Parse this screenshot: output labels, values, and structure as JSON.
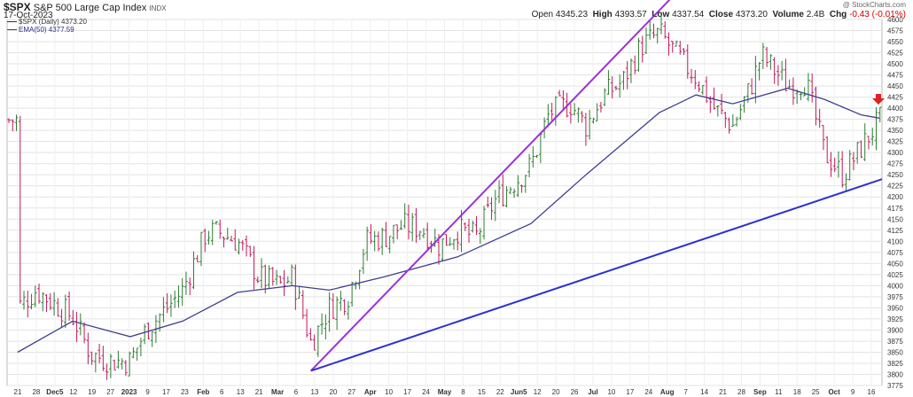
{
  "header": {
    "symbol": "$SPX",
    "name": "S&P 500 Large Cap Index",
    "exchange": "INDX",
    "date": "17-Oct-2023",
    "copyright": "@ StockCharts.com",
    "open_label": "Open",
    "open": "4345.23",
    "high_label": "High",
    "high": "4393.57",
    "low_label": "Low",
    "low": "4337.54",
    "close_label": "Close",
    "close": "4373.20",
    "volume_label": "Volume",
    "volume": "2.4B",
    "chg_label": "Chg",
    "chg": "-0.43 (-0.01%)"
  },
  "legend": {
    "price_series": "$SPX (Daily) 4373.20",
    "ema_series": "EMA(50) 4377.59"
  },
  "colors": {
    "up_bar": "#2e7d32",
    "down_bar": "#c2185b",
    "ema": "#3f3f8f",
    "trend_upper": "#9b30d9",
    "trend_lower": "#2f2fd1",
    "grid": "#e3e3e3",
    "arrow": "#dd2222"
  },
  "chart_data": {
    "type": "ohlc",
    "ylim": [
      3775,
      4600
    ],
    "y_ticks": [
      3775,
      3800,
      3825,
      3850,
      3875,
      3900,
      3925,
      3950,
      3975,
      4000,
      4025,
      4050,
      4075,
      4100,
      4125,
      4150,
      4175,
      4200,
      4225,
      4250,
      4275,
      4300,
      4325,
      4350,
      4375,
      4400,
      4425,
      4450,
      4475,
      4500,
      4525,
      4550,
      4575,
      4600
    ],
    "x_ticks": [
      "21",
      "28",
      "Dec5",
      "12",
      "19",
      "27",
      "2023",
      "9",
      "17",
      "23",
      "Feb",
      "6",
      "13",
      "21",
      "Mar",
      "6",
      "13",
      "20",
      "27",
      "Apr",
      "10",
      "17",
      "24",
      "May",
      "8",
      "15",
      "22",
      "Jun5",
      "12",
      "20",
      "26",
      "Jul",
      "10",
      "17",
      "24",
      "Aug",
      "7",
      "14",
      "21",
      "28",
      "Sep",
      "11",
      "18",
      "25",
      "Oct",
      "9",
      "16"
    ],
    "close_series": [
      [
        "2022-11-21",
        3950
      ],
      [
        "2022-11-28",
        3990
      ],
      [
        "2022-12-05",
        3960
      ],
      [
        "2022-12-12",
        3930
      ],
      [
        "2022-12-19",
        3845
      ],
      [
        "2022-12-27",
        3830
      ],
      [
        "2023-01-03",
        3830
      ],
      [
        "2023-01-09",
        3900
      ],
      [
        "2023-01-17",
        3950
      ],
      [
        "2023-01-23",
        3990
      ],
      [
        "2023-02-01",
        4120
      ],
      [
        "2023-02-06",
        4120
      ],
      [
        "2023-02-13",
        4100
      ],
      [
        "2023-02-21",
        4020
      ],
      [
        "2023-03-01",
        4000
      ],
      [
        "2023-03-06",
        4020
      ],
      [
        "2023-03-13",
        3870
      ],
      [
        "2023-03-20",
        3950
      ],
      [
        "2023-03-27",
        3975
      ],
      [
        "2023-04-03",
        4100
      ],
      [
        "2023-04-10",
        4110
      ],
      [
        "2023-04-17",
        4135
      ],
      [
        "2023-04-24",
        4130
      ],
      [
        "2023-05-01",
        4090
      ],
      [
        "2023-05-08",
        4125
      ],
      [
        "2023-05-15",
        4110
      ],
      [
        "2023-05-22",
        4190
      ],
      [
        "2023-06-05",
        4270
      ],
      [
        "2023-06-12",
        4390
      ],
      [
        "2023-06-20",
        4410
      ],
      [
        "2023-06-26",
        4360
      ],
      [
        "2023-07-03",
        4430
      ],
      [
        "2023-07-10",
        4460
      ],
      [
        "2023-07-17",
        4540
      ],
      [
        "2023-07-24",
        4570
      ],
      [
        "2023-08-01",
        4510
      ],
      [
        "2023-08-07",
        4470
      ],
      [
        "2023-08-14",
        4400
      ],
      [
        "2023-08-21",
        4360
      ],
      [
        "2023-08-28",
        4450
      ],
      [
        "2023-09-01",
        4520
      ],
      [
        "2023-09-11",
        4450
      ],
      [
        "2023-09-18",
        4460
      ],
      [
        "2023-09-25",
        4300
      ],
      [
        "2023-10-02",
        4250
      ],
      [
        "2023-10-09",
        4310
      ],
      [
        "2023-10-16",
        4373.2
      ]
    ],
    "ema50_series": [
      [
        "2022-11-21",
        3850
      ],
      [
        "2022-12-12",
        3920
      ],
      [
        "2023-01-03",
        3885
      ],
      [
        "2023-01-23",
        3920
      ],
      [
        "2023-02-13",
        3985
      ],
      [
        "2023-03-06",
        4000
      ],
      [
        "2023-03-20",
        3990
      ],
      [
        "2023-04-10",
        4020
      ],
      [
        "2023-05-08",
        4065
      ],
      [
        "2023-06-05",
        4140
      ],
      [
        "2023-06-26",
        4250
      ],
      [
        "2023-07-24",
        4390
      ],
      [
        "2023-08-07",
        4430
      ],
      [
        "2023-08-21",
        4410
      ],
      [
        "2023-09-11",
        4445
      ],
      [
        "2023-09-25",
        4420
      ],
      [
        "2023-10-09",
        4385
      ],
      [
        "2023-10-16",
        4377.59
      ]
    ],
    "trendlines": [
      {
        "from": [
          "2023-03-13",
          3808
        ],
        "to": [
          "2023-07-28",
          4645
        ]
      },
      {
        "from": [
          "2023-03-13",
          3808
        ],
        "to": [
          "2023-10-17",
          4240
        ]
      }
    ]
  }
}
